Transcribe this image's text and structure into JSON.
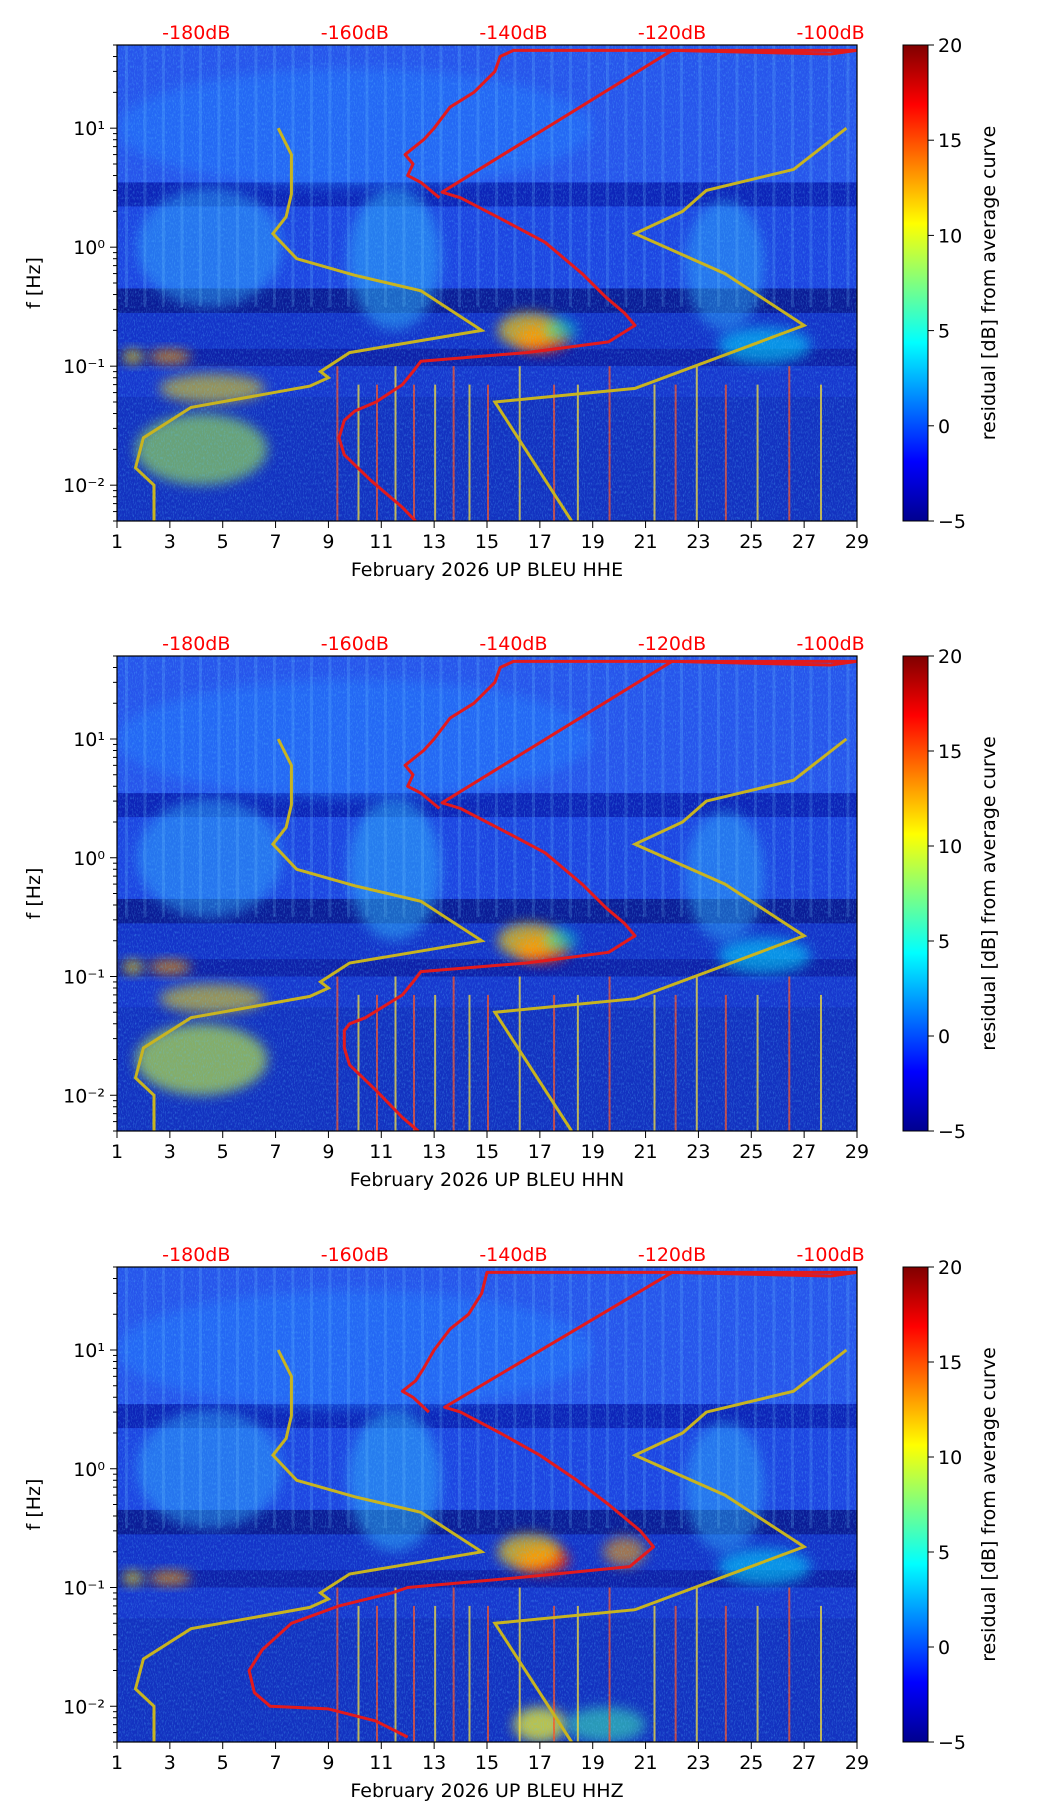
{
  "colors": {
    "ref_curve": "#e31a1c",
    "noise_model": "#c8b420",
    "db_label": "#ff0000",
    "background_field": "#1a3ad8"
  },
  "chart_data": [
    {
      "type": "heatmap",
      "title": "",
      "xlabel": "February 2026 UP BLEU  HHE",
      "ylabel": "f [Hz]",
      "x_ticks": [
        "1",
        "3",
        "5",
        "7",
        "9",
        "11",
        "13",
        "15",
        "17",
        "19",
        "21",
        "23",
        "25",
        "27",
        "29"
      ],
      "x_range": [
        1,
        29
      ],
      "y_ticks": [
        "10⁻²",
        "10⁻¹",
        "10⁰",
        "10¹"
      ],
      "y_range_hz": [
        0.005,
        50
      ],
      "db_ticks": [
        "-180dB",
        "-160dB",
        "-140dB",
        "-120dB",
        "-100dB"
      ],
      "db_tick_days": [
        4,
        10,
        16,
        22,
        28
      ],
      "colorbar": {
        "label": "residual [dB] from average curve",
        "ticks": [
          "−5",
          "0",
          "5",
          "10",
          "15",
          "20"
        ],
        "range": [
          -5,
          20
        ]
      },
      "legend": "none",
      "noise_model_low": [
        [
          7.1,
          10
        ],
        [
          7.6,
          6
        ],
        [
          7.6,
          2.8
        ],
        [
          7.4,
          1.8
        ],
        [
          6.9,
          1.3
        ],
        [
          7.8,
          0.8
        ],
        [
          10,
          0.58
        ],
        [
          12.5,
          0.43
        ],
        [
          14.8,
          0.2
        ],
        [
          9.8,
          0.13
        ],
        [
          8.7,
          0.09
        ],
        [
          9.0,
          0.08
        ],
        [
          8.3,
          0.068
        ],
        [
          3.8,
          0.045
        ],
        [
          2.0,
          0.025
        ],
        [
          1.7,
          0.014
        ],
        [
          2.4,
          0.01
        ],
        [
          2.4,
          0.005
        ]
      ],
      "noise_model_high": [
        [
          28.6,
          10
        ],
        [
          26.6,
          4.5
        ],
        [
          23.3,
          3
        ],
        [
          22.4,
          2
        ],
        [
          20.6,
          1.3
        ],
        [
          24,
          0.6
        ],
        [
          27,
          0.22
        ],
        [
          20.6,
          0.065
        ],
        [
          15.3,
          0.05
        ],
        [
          18.2,
          0.005
        ]
      ],
      "ref_curve": [
        [
          13.2,
          2.6
        ],
        [
          12.5,
          3.5
        ],
        [
          12,
          4
        ],
        [
          12.2,
          5
        ],
        [
          11.9,
          6
        ],
        [
          12.6,
          8
        ],
        [
          13,
          10
        ],
        [
          13.6,
          15
        ],
        [
          14.5,
          20
        ],
        [
          15.3,
          30
        ],
        [
          15.5,
          40
        ],
        [
          16,
          45
        ],
        [
          29,
          45
        ],
        [
          28,
          42
        ],
        [
          22,
          45
        ],
        [
          13.3,
          2.9
        ],
        [
          14,
          2.6
        ],
        [
          15.6,
          1.7
        ],
        [
          17.2,
          1.1
        ],
        [
          18.6,
          0.6
        ],
        [
          19.5,
          0.38
        ],
        [
          20.2,
          0.28
        ],
        [
          20.6,
          0.22
        ],
        [
          19.6,
          0.16
        ],
        [
          16.5,
          0.13
        ],
        [
          12.5,
          0.11
        ],
        [
          12.2,
          0.09
        ],
        [
          11.8,
          0.07
        ],
        [
          10.8,
          0.05
        ],
        [
          10,
          0.042
        ],
        [
          9.6,
          0.035
        ],
        [
          9.4,
          0.025
        ],
        [
          9.6,
          0.018
        ],
        [
          10.6,
          0.011
        ],
        [
          11.8,
          0.0065
        ],
        [
          12.3,
          0.005
        ]
      ],
      "blobs": [
        [
          17.1,
          0.17,
          2.0,
          0.22,
          "#ff2000",
          0.9
        ],
        [
          16.6,
          0.2,
          2.4,
          0.3,
          "#ffd000",
          0.7
        ],
        [
          3.0,
          0.12,
          1.6,
          0.12,
          "#ffa000",
          0.7
        ],
        [
          1.6,
          0.12,
          0.8,
          0.12,
          "#ffe000",
          0.7
        ],
        [
          4.6,
          0.065,
          4.0,
          0.25,
          "#ffe000",
          0.55
        ],
        [
          25.5,
          0.15,
          3.5,
          0.3,
          "#00e0ff",
          0.55
        ],
        [
          17.8,
          0.2,
          1.2,
          0.2,
          "#00ffd0",
          0.5
        ],
        [
          4.2,
          0.02,
          5.0,
          0.6,
          "#b0ff40",
          0.55
        ],
        [
          4.5,
          1.0,
          5.5,
          1.0,
          "#30b0ff",
          0.45
        ],
        [
          11.5,
          0.8,
          3.5,
          1.2,
          "#30c0ff",
          0.45
        ],
        [
          24,
          0.7,
          3.0,
          1.1,
          "#30c0ff",
          0.4
        ],
        [
          10,
          10,
          18,
          1.0,
          "#2080ff",
          0.45
        ]
      ]
    },
    {
      "type": "heatmap",
      "title": "",
      "xlabel": "February 2026 UP BLEU  HHN",
      "ylabel": "f [Hz]",
      "x_ticks": [
        "1",
        "3",
        "5",
        "7",
        "9",
        "11",
        "13",
        "15",
        "17",
        "19",
        "21",
        "23",
        "25",
        "27",
        "29"
      ],
      "x_range": [
        1,
        29
      ],
      "y_ticks": [
        "10⁻²",
        "10⁻¹",
        "10⁰",
        "10¹"
      ],
      "y_range_hz": [
        0.005,
        50
      ],
      "db_ticks": [
        "-180dB",
        "-160dB",
        "-140dB",
        "-120dB",
        "-100dB"
      ],
      "db_tick_days": [
        4,
        10,
        16,
        22,
        28
      ],
      "colorbar": {
        "label": "residual [dB] from average curve",
        "ticks": [
          "−5",
          "0",
          "5",
          "10",
          "15",
          "20"
        ],
        "range": [
          -5,
          20
        ]
      },
      "legend": "none",
      "noise_model_low": [
        [
          7.1,
          10
        ],
        [
          7.6,
          6
        ],
        [
          7.6,
          2.8
        ],
        [
          7.4,
          1.8
        ],
        [
          6.9,
          1.3
        ],
        [
          7.8,
          0.8
        ],
        [
          10,
          0.58
        ],
        [
          12.5,
          0.43
        ],
        [
          14.8,
          0.2
        ],
        [
          9.8,
          0.13
        ],
        [
          8.7,
          0.09
        ],
        [
          9.0,
          0.08
        ],
        [
          8.3,
          0.068
        ],
        [
          3.8,
          0.045
        ],
        [
          2.0,
          0.025
        ],
        [
          1.7,
          0.014
        ],
        [
          2.4,
          0.01
        ],
        [
          2.4,
          0.005
        ]
      ],
      "noise_model_high": [
        [
          28.6,
          10
        ],
        [
          26.6,
          4.5
        ],
        [
          23.3,
          3
        ],
        [
          22.4,
          2
        ],
        [
          20.6,
          1.3
        ],
        [
          24,
          0.6
        ],
        [
          27,
          0.22
        ],
        [
          20.6,
          0.065
        ],
        [
          15.3,
          0.05
        ],
        [
          18.2,
          0.005
        ]
      ],
      "ref_curve": [
        [
          13.2,
          2.6
        ],
        [
          12.5,
          3.5
        ],
        [
          12,
          4
        ],
        [
          12.2,
          5
        ],
        [
          11.9,
          6
        ],
        [
          12.6,
          8
        ],
        [
          13,
          10
        ],
        [
          13.6,
          15
        ],
        [
          14.5,
          20
        ],
        [
          15.3,
          30
        ],
        [
          15.5,
          40
        ],
        [
          16,
          45
        ],
        [
          29,
          45
        ],
        [
          28,
          42
        ],
        [
          22,
          45
        ],
        [
          13.3,
          2.9
        ],
        [
          14,
          2.6
        ],
        [
          15.6,
          1.7
        ],
        [
          17.2,
          1.1
        ],
        [
          18.6,
          0.6
        ],
        [
          19.5,
          0.38
        ],
        [
          20.2,
          0.28
        ],
        [
          20.6,
          0.22
        ],
        [
          19.6,
          0.16
        ],
        [
          16.5,
          0.13
        ],
        [
          12.5,
          0.11
        ],
        [
          12.2,
          0.09
        ],
        [
          11.8,
          0.07
        ],
        [
          10.4,
          0.045
        ],
        [
          9.8,
          0.04
        ],
        [
          9.6,
          0.035
        ],
        [
          9.6,
          0.025
        ],
        [
          9.8,
          0.018
        ],
        [
          10.8,
          0.011
        ],
        [
          11.8,
          0.0065
        ],
        [
          12.4,
          0.005
        ]
      ],
      "blobs": [
        [
          17.1,
          0.17,
          2.0,
          0.22,
          "#ff2000",
          0.9
        ],
        [
          16.6,
          0.2,
          2.4,
          0.3,
          "#ffd000",
          0.7
        ],
        [
          3.0,
          0.12,
          1.6,
          0.12,
          "#ffa000",
          0.7
        ],
        [
          1.6,
          0.12,
          0.8,
          0.12,
          "#ffe000",
          0.7
        ],
        [
          4.6,
          0.065,
          4.0,
          0.25,
          "#ffe000",
          0.55
        ],
        [
          25.5,
          0.15,
          3.5,
          0.3,
          "#00e0ff",
          0.55
        ],
        [
          17.8,
          0.2,
          1.2,
          0.2,
          "#00ffd0",
          0.5
        ],
        [
          4.2,
          0.02,
          5.0,
          0.6,
          "#d0ff30",
          0.6
        ],
        [
          4.5,
          1.0,
          5.5,
          1.0,
          "#30b0ff",
          0.45
        ],
        [
          11.5,
          0.8,
          3.5,
          1.2,
          "#30c0ff",
          0.45
        ],
        [
          24,
          0.7,
          3.0,
          1.1,
          "#30c0ff",
          0.4
        ],
        [
          10,
          10,
          18,
          1.0,
          "#2080ff",
          0.45
        ]
      ]
    },
    {
      "type": "heatmap",
      "title": "",
      "xlabel": "February 2026 UP BLEU  HHZ",
      "ylabel": "f [Hz]",
      "x_ticks": [
        "1",
        "3",
        "5",
        "7",
        "9",
        "11",
        "13",
        "15",
        "17",
        "19",
        "21",
        "23",
        "25",
        "27",
        "29"
      ],
      "x_range": [
        1,
        29
      ],
      "y_ticks": [
        "10⁻²",
        "10⁻¹",
        "10⁰",
        "10¹"
      ],
      "y_range_hz": [
        0.005,
        50
      ],
      "db_ticks": [
        "-180dB",
        "-160dB",
        "-140dB",
        "-120dB",
        "-100dB"
      ],
      "db_tick_days": [
        4,
        10,
        16,
        22,
        28
      ],
      "colorbar": {
        "label": "residual [dB] from average curve",
        "ticks": [
          "−5",
          "0",
          "5",
          "10",
          "15",
          "20"
        ],
        "range": [
          -5,
          20
        ]
      },
      "legend": "none",
      "noise_model_low": [
        [
          7.1,
          10
        ],
        [
          7.6,
          6
        ],
        [
          7.6,
          2.8
        ],
        [
          7.4,
          1.8
        ],
        [
          6.9,
          1.3
        ],
        [
          7.8,
          0.8
        ],
        [
          10,
          0.58
        ],
        [
          12.5,
          0.43
        ],
        [
          14.8,
          0.2
        ],
        [
          9.8,
          0.13
        ],
        [
          8.7,
          0.09
        ],
        [
          9.0,
          0.08
        ],
        [
          8.3,
          0.068
        ],
        [
          3.8,
          0.045
        ],
        [
          2.0,
          0.025
        ],
        [
          1.7,
          0.014
        ],
        [
          2.4,
          0.01
        ],
        [
          2.4,
          0.005
        ]
      ],
      "noise_model_high": [
        [
          28.6,
          10
        ],
        [
          26.6,
          4.5
        ],
        [
          23.3,
          3
        ],
        [
          22.4,
          2
        ],
        [
          20.6,
          1.3
        ],
        [
          24,
          0.6
        ],
        [
          27,
          0.22
        ],
        [
          20.6,
          0.065
        ],
        [
          15.3,
          0.05
        ],
        [
          18.2,
          0.005
        ]
      ],
      "ref_curve": [
        [
          12.8,
          3.0
        ],
        [
          12.2,
          4
        ],
        [
          11.8,
          4.5
        ],
        [
          12.3,
          5.5
        ],
        [
          12.6,
          7
        ],
        [
          13,
          10
        ],
        [
          13.6,
          15
        ],
        [
          14.3,
          20
        ],
        [
          14.8,
          30
        ],
        [
          15,
          45
        ],
        [
          29,
          45
        ],
        [
          28,
          42
        ],
        [
          22,
          45
        ],
        [
          13.4,
          3.3
        ],
        [
          14,
          3.0
        ],
        [
          15.5,
          2.0
        ],
        [
          17,
          1.3
        ],
        [
          18.4,
          0.8
        ],
        [
          19.6,
          0.5
        ],
        [
          20.8,
          0.3
        ],
        [
          21.3,
          0.22
        ],
        [
          20.4,
          0.15
        ],
        [
          16,
          0.12
        ],
        [
          12,
          0.1
        ],
        [
          11.4,
          0.09
        ],
        [
          9.4,
          0.07
        ],
        [
          7.6,
          0.05
        ],
        [
          6.5,
          0.03
        ],
        [
          6,
          0.02
        ],
        [
          6.2,
          0.013
        ],
        [
          6.8,
          0.01
        ],
        [
          9,
          0.0095
        ],
        [
          10.8,
          0.0075
        ],
        [
          12,
          0.0055
        ]
      ],
      "blobs": [
        [
          17.1,
          0.17,
          2.0,
          0.22,
          "#ff2000",
          0.9
        ],
        [
          16.6,
          0.2,
          2.4,
          0.3,
          "#ffd000",
          0.7
        ],
        [
          20.2,
          0.2,
          1.6,
          0.25,
          "#ffa000",
          0.6
        ],
        [
          3.0,
          0.12,
          1.6,
          0.12,
          "#ffa000",
          0.7
        ],
        [
          1.6,
          0.12,
          0.8,
          0.12,
          "#ffe000",
          0.7
        ],
        [
          25.5,
          0.15,
          3.5,
          0.3,
          "#00e0ff",
          0.55
        ],
        [
          17.0,
          0.007,
          2.0,
          0.3,
          "#ffff20",
          0.7
        ],
        [
          19.5,
          0.007,
          3.0,
          0.3,
          "#40ffb0",
          0.5
        ],
        [
          4.5,
          1.0,
          5.5,
          1.0,
          "#30b0ff",
          0.45
        ],
        [
          11.5,
          0.8,
          3.5,
          1.2,
          "#30c0ff",
          0.45
        ],
        [
          24,
          0.7,
          3.0,
          1.1,
          "#30c0ff",
          0.4
        ],
        [
          10,
          10,
          18,
          1.0,
          "#2080ff",
          0.45
        ]
      ]
    }
  ]
}
